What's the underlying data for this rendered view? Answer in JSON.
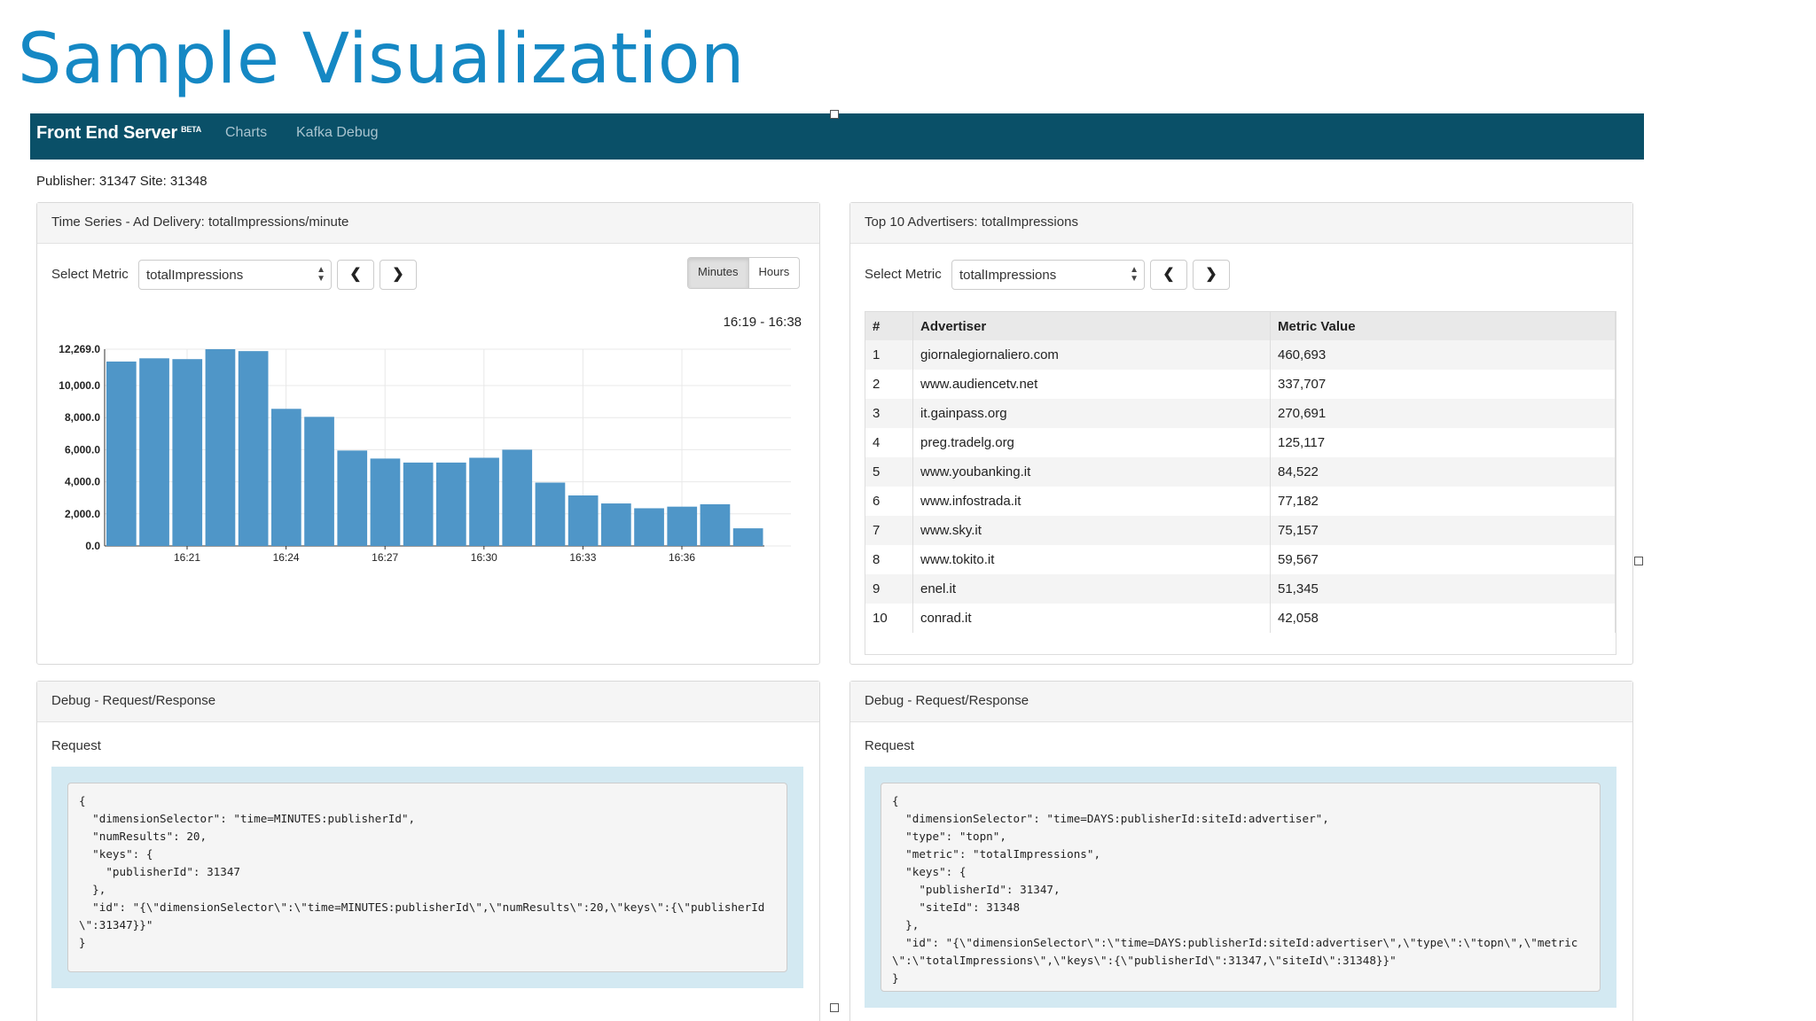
{
  "slide": {
    "title": "Sample Visualization"
  },
  "navbar": {
    "brand": "Front End Server",
    "brand_badge": "BETA",
    "links": [
      "Charts",
      "Kafka Debug"
    ]
  },
  "publisher_line": "Publisher: 31347 Site: 31348",
  "timeseries_panel": {
    "heading": "Time Series - Ad Delivery: totalImpressions/minute",
    "select_label": "Select Metric",
    "select_value": "totalImpressions",
    "prev_icon": "chevron-left-icon",
    "next_icon": "chevron-right-icon",
    "toggle": [
      "Minutes",
      "Hours"
    ],
    "toggle_active": "Minutes",
    "range": "16:19 - 16:38",
    "bar_color": "#4f96c8"
  },
  "chart_data": {
    "type": "bar",
    "x": [
      "16:19",
      "16:20",
      "16:21",
      "16:22",
      "16:23",
      "16:24",
      "16:25",
      "16:26",
      "16:27",
      "16:28",
      "16:29",
      "16:30",
      "16:31",
      "16:32",
      "16:33",
      "16:34",
      "16:35",
      "16:36",
      "16:37",
      "16:38"
    ],
    "values": [
      11500,
      11700,
      11650,
      12269,
      12150,
      8550,
      8050,
      5950,
      5450,
      5200,
      5200,
      5500,
      6000,
      3950,
      3150,
      2650,
      2350,
      2450,
      2600,
      1100
    ],
    "x_tick_labels": [
      "16:21",
      "16:24",
      "16:27",
      "16:30",
      "16:33",
      "16:36"
    ],
    "y_tick_labels": [
      "0.0",
      "2,000.0",
      "4,000.0",
      "6,000.0",
      "8,000.0",
      "10,000.0",
      "12,269.0"
    ],
    "y_tick_values": [
      0,
      2000,
      4000,
      6000,
      8000,
      10000,
      12269
    ],
    "ylim": [
      0,
      12269
    ],
    "grid": true
  },
  "top_panel": {
    "heading": "Top 10 Advertisers: totalImpressions",
    "select_label": "Select Metric",
    "select_value": "totalImpressions",
    "columns": [
      "#",
      "Advertiser",
      "Metric Value"
    ],
    "rows": [
      [
        "1",
        "giornalegiornaliero.com",
        "460,693"
      ],
      [
        "2",
        "www.audiencetv.net",
        "337,707"
      ],
      [
        "3",
        "it.gainpass.org",
        "270,691"
      ],
      [
        "4",
        "preg.tradelg.org",
        "125,117"
      ],
      [
        "5",
        "www.youbanking.it",
        "84,522"
      ],
      [
        "6",
        "www.infostrada.it",
        "77,182"
      ],
      [
        "7",
        "www.sky.it",
        "75,157"
      ],
      [
        "8",
        "www.tokito.it",
        "59,567"
      ],
      [
        "9",
        "enel.it",
        "51,345"
      ],
      [
        "10",
        "conrad.it",
        "42,058"
      ]
    ]
  },
  "debug_left": {
    "heading": "Debug - Request/Response",
    "request_label": "Request",
    "code": "{\n  \"dimensionSelector\": \"time=MINUTES:publisherId\",\n  \"numResults\": 20,\n  \"keys\": {\n    \"publisherId\": 31347\n  },\n  \"id\": \"{\\\"dimensionSelector\\\":\\\"time=MINUTES:publisherId\\\",\\\"numResults\\\":20,\\\"keys\\\":{\\\"publisherId\\\":31347}}\"\n}"
  },
  "debug_right": {
    "heading": "Debug - Request/Response",
    "request_label": "Request",
    "code": "{\n  \"dimensionSelector\": \"time=DAYS:publisherId:siteId:advertiser\",\n  \"type\": \"topn\",\n  \"metric\": \"totalImpressions\",\n  \"keys\": {\n    \"publisherId\": 31347,\n    \"siteId\": 31348\n  },\n  \"id\": \"{\\\"dimensionSelector\\\":\\\"time=DAYS:publisherId:siteId:advertiser\\\",\\\"type\\\":\\\"topn\\\",\\\"metric\\\":\\\"totalImpressions\\\",\\\"keys\\\":{\\\"publisherId\\\":31347,\\\"siteId\\\":31348}}\"\n}"
  }
}
